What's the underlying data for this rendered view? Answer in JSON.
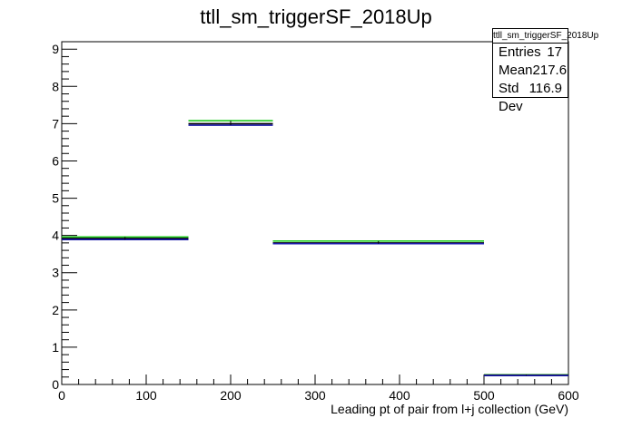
{
  "chart_data": {
    "type": "histogram",
    "title": "ttll_sm_triggerSF_2018Up",
    "xlabel": "Leading pt of pair from l+j collection (GeV)",
    "ylabel": "",
    "xlim": [
      0,
      600
    ],
    "ylim": [
      0,
      9.2
    ],
    "x_ticks": [
      "0",
      "100",
      "200",
      "300",
      "400",
      "500",
      "600"
    ],
    "y_ticks": [
      "0",
      "1",
      "2",
      "3",
      "4",
      "5",
      "6",
      "7",
      "8",
      "9"
    ],
    "grid": false,
    "legend": "none",
    "bins": [
      {
        "x_low": 0,
        "x_high": 150,
        "nominal": 3.92,
        "up": 3.96,
        "down": 3.89
      },
      {
        "x_low": 150,
        "x_high": 250,
        "nominal": 7.0,
        "up": 7.08,
        "down": 6.96
      },
      {
        "x_low": 250,
        "x_high": 500,
        "nominal": 3.8,
        "up": 3.85,
        "down": 3.78
      },
      {
        "x_low": 500,
        "x_high": 600,
        "nominal": 0.25,
        "up": 0.26,
        "down": 0.24
      }
    ],
    "series": [
      {
        "role": "up",
        "color": "#22cc22"
      },
      {
        "role": "nominal",
        "color": "#000000"
      },
      {
        "role": "down",
        "color": "#1a1aaa"
      }
    ],
    "stats": {
      "name": "ttll_sm_triggerSF_2018Up",
      "rows": [
        {
          "label": "Entries",
          "value": "17"
        },
        {
          "label": "Mean",
          "value": "217.6"
        },
        {
          "label": "Std Dev",
          "value": "116.9"
        }
      ]
    }
  }
}
